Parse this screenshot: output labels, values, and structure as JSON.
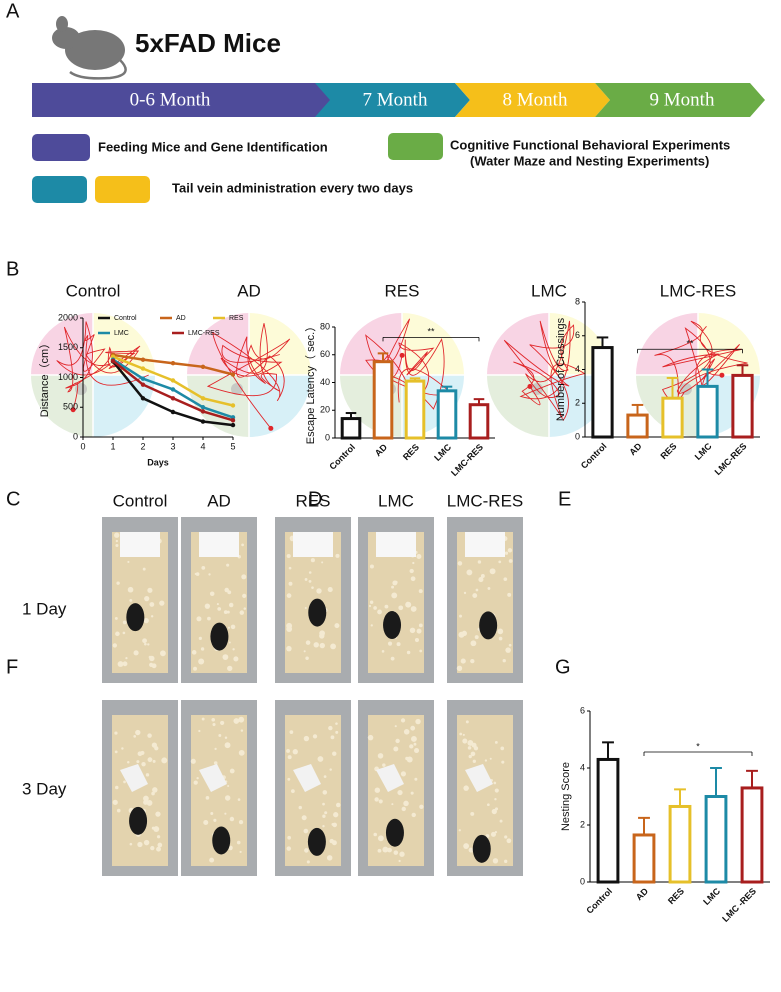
{
  "panels": [
    "A",
    "B",
    "C",
    "D",
    "E",
    "F",
    "G"
  ],
  "timeline": {
    "title": "5xFAD  Mice",
    "stages": [
      "0-6 Month",
      "7 Month",
      "8 Month",
      "9 Month"
    ],
    "legend": [
      "Feeding Mice and Gene Identification",
      "Cognitive Functional Behavioral Experiments",
      "(Water Maze and Nesting Experiments)",
      "Tail vein administration every two days"
    ]
  },
  "maze": {
    "groups": [
      "Control",
      "AD",
      "RES",
      "LMC",
      "LMC-RES"
    ]
  },
  "nesting": {
    "groups": [
      "Control",
      "AD",
      "RES",
      "LMC",
      "LMC-RES"
    ],
    "rows": [
      "1 Day",
      "3 Day"
    ]
  },
  "chart_data": [
    {
      "type": "line",
      "x_label": "Days",
      "y_label": "Distance（cm）",
      "x": [
        1,
        2,
        3,
        4,
        5
      ],
      "xlim": [
        0,
        5
      ],
      "xticks": [
        0,
        1,
        2,
        3,
        4,
        5
      ],
      "ylim": [
        0,
        2000
      ],
      "yticks": [
        0,
        500,
        1000,
        1500,
        2000
      ],
      "series": [
        {
          "name": "Control",
          "color": "#111111",
          "values": [
            1270,
            650,
            420,
            260,
            200
          ]
        },
        {
          "name": "AD",
          "color": "#c8651b",
          "values": [
            1380,
            1300,
            1240,
            1180,
            1050
          ]
        },
        {
          "name": "RES",
          "color": "#e6c02a",
          "values": [
            1350,
            1150,
            950,
            650,
            530
          ]
        },
        {
          "name": "LMC",
          "color": "#1d8aa6",
          "values": [
            1300,
            980,
            800,
            500,
            330
          ]
        },
        {
          "name": "LMC-RES",
          "color": "#a81e1e",
          "values": [
            1280,
            880,
            650,
            430,
            280
          ]
        }
      ]
    },
    {
      "type": "bar",
      "y_label": "Escape Latency（ sec.）",
      "categories": [
        "Control",
        "AD",
        "RES",
        "LMC",
        "LMC-RES"
      ],
      "colors": [
        "#111111",
        "#c8651b",
        "#e6c02a",
        "#1d8aa6",
        "#a81e1e"
      ],
      "values": [
        14,
        55,
        41,
        34,
        24
      ],
      "errors": [
        4,
        6,
        2,
        3,
        4
      ],
      "ylim": [
        0,
        80
      ],
      "yticks": [
        0,
        20,
        40,
        60,
        80
      ],
      "annotation": "**"
    },
    {
      "type": "bar",
      "y_label": "Number of Crossings",
      "categories": [
        "Control",
        "AD",
        "RES",
        "LMC",
        "LMC-RES"
      ],
      "colors": [
        "#111111",
        "#c8651b",
        "#e6c02a",
        "#1d8aa6",
        "#a81e1e"
      ],
      "values": [
        5.3,
        1.3,
        2.3,
        3.0,
        3.65
      ],
      "errors": [
        0.6,
        0.6,
        1.2,
        1.0,
        0.6
      ],
      "ylim": [
        0,
        8
      ],
      "yticks": [
        0,
        2,
        4,
        6,
        8
      ],
      "annotation": "**"
    },
    {
      "type": "bar",
      "y_label": "Nesting Score",
      "categories": [
        "Control",
        "AD",
        "RES",
        "LMC",
        "LMC -RES"
      ],
      "colors": [
        "#111111",
        "#c8651b",
        "#e6c02a",
        "#1d8aa6",
        "#a81e1e"
      ],
      "values": [
        4.3,
        1.65,
        2.65,
        3.0,
        3.3
      ],
      "errors": [
        0.6,
        0.6,
        0.6,
        1.0,
        0.6
      ],
      "ylim": [
        0,
        6
      ],
      "yticks": [
        0,
        2,
        4,
        6
      ],
      "annotation": "*"
    }
  ]
}
